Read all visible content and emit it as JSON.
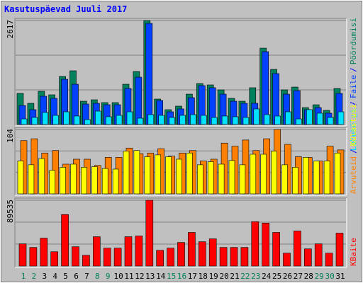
{
  "chart_data": {
    "type": "bar",
    "title": "Kasutuspäevad Juuli 2017",
    "categories": [
      "1",
      "2",
      "3",
      "4",
      "5",
      "6",
      "7",
      "8",
      "9",
      "10",
      "11",
      "12",
      "13",
      "14",
      "15",
      "16",
      "17",
      "18",
      "19",
      "20",
      "21",
      "22",
      "23",
      "24",
      "25",
      "26",
      "27",
      "28",
      "29",
      "30",
      "31"
    ],
    "category_colors": [
      "#00805c",
      "#00805c",
      "#000000",
      "#000000",
      "#000000",
      "#000000",
      "#000000",
      "#00805c",
      "#00805c",
      "#000000",
      "#000000",
      "#000000",
      "#000000",
      "#000000",
      "#00805c",
      "#00805c",
      "#000000",
      "#000000",
      "#000000",
      "#000000",
      "#000000",
      "#00805c",
      "#00805c",
      "#000000",
      "#000000",
      "#000000",
      "#000000",
      "#000000",
      "#00805c",
      "#00805c",
      "#000000"
    ],
    "legend_separator": "/",
    "panels": [
      {
        "ylim": [
          0,
          2617
        ],
        "yticks": [
          2617
        ],
        "series": [
          {
            "name": "Pöördumisi",
            "color": "#00805c",
            "values": [
              783,
              534,
              837,
              748,
              1210,
              1353,
              587,
              623,
              552,
              552,
              1014,
              1335,
              2617,
              641,
              374,
              463,
              765,
              1032,
              997,
              872,
              659,
              587,
              926,
              1922,
              1388,
              872,
              943,
              427,
              498,
              356,
              908
            ]
          },
          {
            "name": "Faile",
            "color": "#0040ff",
            "values": [
              480,
              374,
              712,
              659,
              1139,
              1014,
              516,
              534,
              498,
              498,
              908,
              1192,
              2545,
              605,
              320,
              392,
              676,
              979,
              926,
              765,
              587,
              534,
              534,
              1834,
              1282,
              765,
              854,
              374,
              427,
              285,
              783
            ]
          },
          {
            "name": "Lehekülgi",
            "color": "#00e0ff",
            "values": [
              142,
              178,
              303,
              231,
              320,
              214,
              125,
              338,
              196,
              231,
              320,
              160,
              249,
              231,
              178,
              231,
              249,
              231,
              178,
              214,
              196,
              178,
              392,
              249,
              214,
              320,
              142,
              374,
              285,
              178,
              320
            ]
          }
        ]
      },
      {
        "ylim": [
          0,
          104
        ],
        "yticks": [
          104
        ],
        "series": [
          {
            "name": "Arvuteid",
            "color": "#ff8000",
            "values": [
              86,
              89,
              66,
              70,
              48,
              56,
              56,
              46,
              59,
              59,
              74,
              65,
              66,
              73,
              61,
              66,
              70,
              53,
              56,
              82,
              77,
              87,
              70,
              89,
              104,
              80,
              60,
              59,
              53,
              77,
              71
            ]
          },
          {
            "name": "Külastusi",
            "color": "#ffff00",
            "values": [
              53,
              47,
              57,
              38,
              43,
              48,
              43,
              44,
              41,
              40,
              69,
              70,
              60,
              63,
              60,
              56,
              66,
              47,
              52,
              48,
              54,
              47,
              64,
              64,
              69,
              47,
              43,
              59,
              53,
              53,
              66
            ]
          }
        ]
      },
      {
        "ylim": [
          0,
          89535
        ],
        "yticks": [
          89535
        ],
        "series": [
          {
            "name": "KBaite",
            "color": "#ff0000",
            "values": [
              30170,
              25300,
              37950,
              19460,
              70060,
              26270,
              14600,
              39900,
              24330,
              24330,
              39900,
              40870,
              89535,
              21410,
              24330,
              32110,
              45730,
              33080,
              36980,
              25300,
              25300,
              25300,
              60330,
              58380,
              45730,
              17510,
              47680,
              23350,
              30170,
              17510,
              44760
            ]
          }
        ]
      }
    ]
  }
}
